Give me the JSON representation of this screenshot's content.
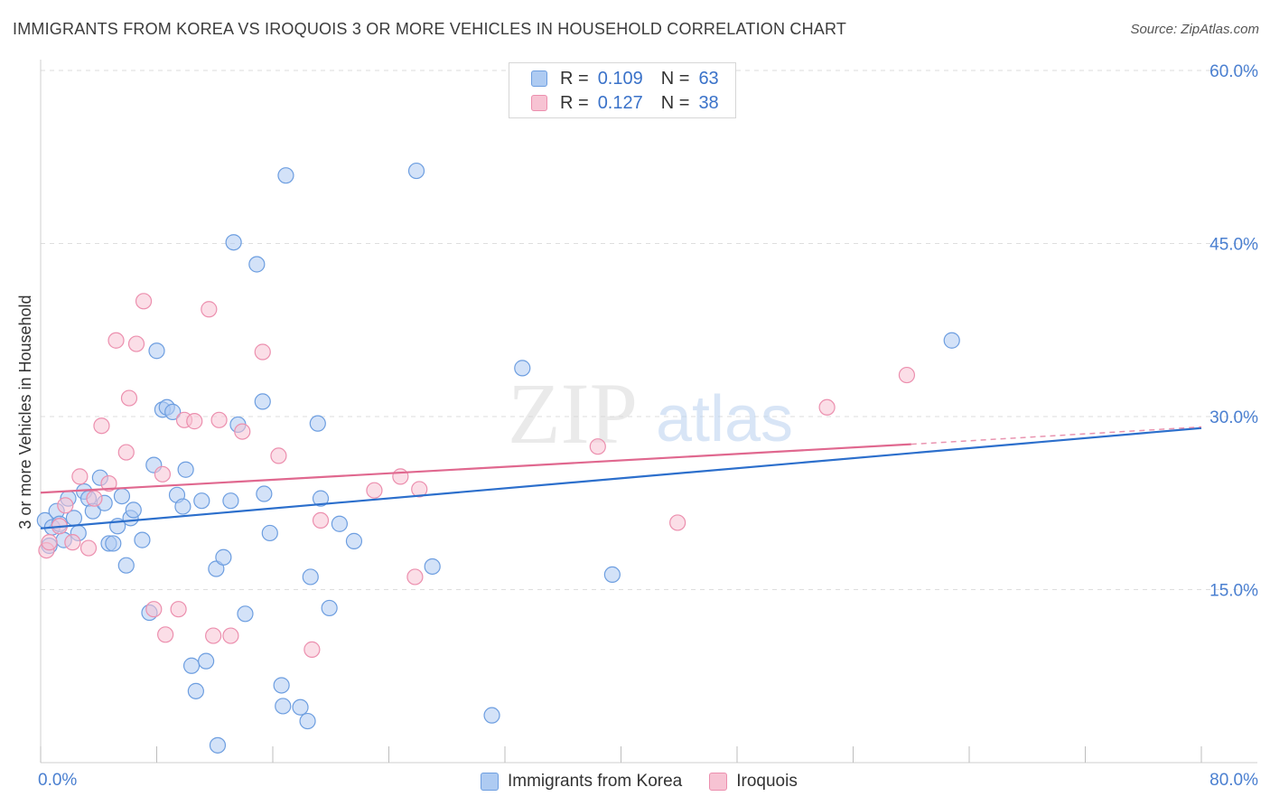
{
  "title": "IMMIGRANTS FROM KOREA VS IROQUOIS 3 OR MORE VEHICLES IN HOUSEHOLD CORRELATION CHART",
  "source": "Source: ZipAtlas.com",
  "watermark": {
    "zip": "ZIP",
    "atlas": "atlas"
  },
  "legend_top": [
    {
      "r_label": "R =",
      "r_value": "0.109",
      "n_label": "N =",
      "n_value": "63"
    },
    {
      "r_label": "R =",
      "r_value": "0.127",
      "n_label": "N =",
      "n_value": "38"
    }
  ],
  "legend_bottom": [
    {
      "label": "Immigrants from Korea"
    },
    {
      "label": "Iroquois"
    }
  ],
  "colors": {
    "blue_fill": "#aecbf2",
    "blue_stroke": "#6d9ee0",
    "blue_line": "#2c6fcc",
    "pink_fill": "#f7c3d3",
    "pink_stroke": "#ec8fae",
    "pink_line": "#e0688f",
    "axis_text": "#4a7fd0",
    "grid": "#dedede"
  },
  "chart_data": {
    "type": "scatter",
    "title": "IMMIGRANTS FROM KOREA VS IROQUOIS 3 OR MORE VEHICLES IN HOUSEHOLD CORRELATION CHART",
    "xlabel": "",
    "ylabel": "3 or more Vehicles in Household",
    "xlim": [
      0,
      80
    ],
    "ylim": [
      0,
      60
    ],
    "x_tick_labels": [
      "0.0%",
      "80.0%"
    ],
    "y_ticks": [
      15,
      30,
      45,
      60
    ],
    "y_tick_labels": [
      "15.0%",
      "30.0%",
      "45.0%",
      "60.0%"
    ],
    "series": [
      {
        "name": "Immigrants from Korea",
        "r": 0.109,
        "n": 63,
        "trend": {
          "x0": 0,
          "y0": 20.3,
          "x1": 80,
          "y1": 29.0
        },
        "points": [
          [
            0.3,
            21.0
          ],
          [
            0.6,
            18.8
          ],
          [
            0.8,
            20.4
          ],
          [
            1.1,
            21.8
          ],
          [
            1.3,
            20.7
          ],
          [
            1.6,
            19.3
          ],
          [
            1.9,
            22.9
          ],
          [
            2.3,
            21.2
          ],
          [
            2.6,
            19.9
          ],
          [
            3.0,
            23.5
          ],
          [
            3.3,
            22.9
          ],
          [
            3.6,
            21.8
          ],
          [
            4.1,
            24.7
          ],
          [
            4.4,
            22.5
          ],
          [
            4.7,
            19.0
          ],
          [
            5.0,
            19.0
          ],
          [
            5.3,
            20.5
          ],
          [
            5.6,
            23.1
          ],
          [
            5.9,
            17.1
          ],
          [
            6.2,
            21.2
          ],
          [
            6.4,
            21.9
          ],
          [
            7.0,
            19.3
          ],
          [
            7.5,
            13.0
          ],
          [
            7.8,
            25.8
          ],
          [
            8.0,
            35.7
          ],
          [
            8.4,
            30.6
          ],
          [
            8.7,
            30.8
          ],
          [
            9.1,
            30.4
          ],
          [
            9.4,
            23.2
          ],
          [
            9.8,
            22.2
          ],
          [
            10.0,
            25.4
          ],
          [
            10.4,
            8.4
          ],
          [
            10.7,
            6.2
          ],
          [
            11.1,
            22.7
          ],
          [
            11.4,
            8.8
          ],
          [
            12.1,
            16.8
          ],
          [
            12.2,
            1.5
          ],
          [
            12.6,
            17.8
          ],
          [
            13.1,
            22.7
          ],
          [
            13.3,
            45.1
          ],
          [
            13.6,
            29.3
          ],
          [
            14.1,
            12.9
          ],
          [
            14.9,
            43.2
          ],
          [
            15.3,
            31.3
          ],
          [
            15.4,
            23.3
          ],
          [
            15.8,
            19.9
          ],
          [
            16.6,
            6.7
          ],
          [
            16.7,
            4.9
          ],
          [
            16.9,
            50.9
          ],
          [
            17.9,
            4.8
          ],
          [
            18.4,
            3.6
          ],
          [
            18.6,
            16.1
          ],
          [
            19.1,
            29.4
          ],
          [
            19.3,
            22.9
          ],
          [
            19.9,
            13.4
          ],
          [
            20.6,
            20.7
          ],
          [
            21.6,
            19.2
          ],
          [
            25.9,
            51.3
          ],
          [
            27.0,
            17.0
          ],
          [
            31.1,
            4.1
          ],
          [
            33.2,
            34.2
          ],
          [
            39.4,
            16.3
          ],
          [
            62.8,
            36.6
          ]
        ]
      },
      {
        "name": "Iroquois",
        "r": 0.127,
        "n": 38,
        "trend": {
          "x0": 0,
          "y0": 23.4,
          "x1": 60,
          "y1": 27.6,
          "dashed_to_x": 80,
          "dashed_to_y": 29.1
        },
        "points": [
          [
            0.4,
            18.4
          ],
          [
            0.6,
            19.1
          ],
          [
            1.3,
            20.5
          ],
          [
            1.7,
            22.3
          ],
          [
            2.2,
            19.1
          ],
          [
            2.7,
            24.8
          ],
          [
            3.3,
            18.6
          ],
          [
            3.7,
            22.9
          ],
          [
            4.2,
            29.2
          ],
          [
            4.7,
            24.2
          ],
          [
            5.2,
            36.6
          ],
          [
            5.9,
            26.9
          ],
          [
            6.1,
            31.6
          ],
          [
            6.6,
            36.3
          ],
          [
            7.1,
            40.0
          ],
          [
            7.8,
            13.3
          ],
          [
            8.4,
            25.0
          ],
          [
            8.6,
            11.1
          ],
          [
            9.5,
            13.3
          ],
          [
            9.9,
            29.7
          ],
          [
            10.6,
            29.6
          ],
          [
            11.6,
            39.3
          ],
          [
            11.9,
            11.0
          ],
          [
            12.3,
            29.7
          ],
          [
            13.1,
            11.0
          ],
          [
            13.9,
            28.7
          ],
          [
            15.3,
            35.6
          ],
          [
            16.4,
            26.6
          ],
          [
            18.7,
            9.8
          ],
          [
            19.3,
            21.0
          ],
          [
            23.0,
            23.6
          ],
          [
            24.8,
            24.8
          ],
          [
            25.8,
            16.1
          ],
          [
            26.1,
            23.7
          ],
          [
            38.4,
            27.4
          ],
          [
            43.9,
            20.8
          ],
          [
            54.2,
            30.8
          ],
          [
            59.7,
            33.6
          ]
        ]
      }
    ]
  }
}
